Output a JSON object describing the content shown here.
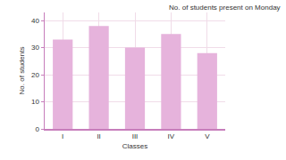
{
  "chart_data": {
    "type": "bar",
    "title": "No. of students present on Monday",
    "x_label": "Classes",
    "y_label": "No. of students",
    "categories": [
      "I",
      "II",
      "III",
      "IV",
      "V"
    ],
    "values": [
      33,
      38,
      30,
      35,
      28
    ],
    "color": "#e6b3dc",
    "ylim": [
      0,
      43
    ],
    "yticks": [
      0,
      10,
      20,
      30,
      40
    ],
    "grid": true
  }
}
